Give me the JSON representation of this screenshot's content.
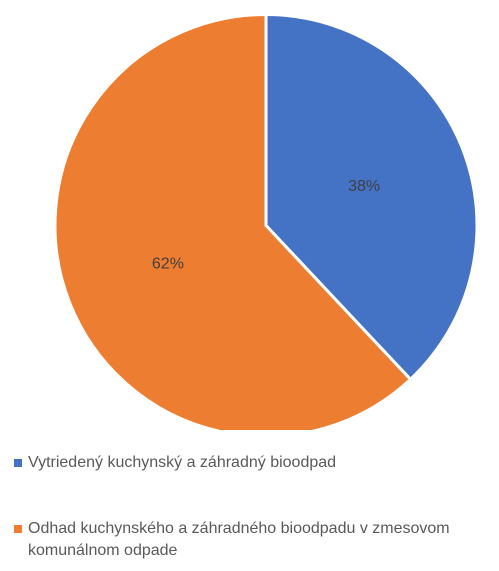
{
  "chart_data": {
    "type": "pie",
    "categories": [
      "Vytriedený kuchynský a záhradný bioodpad",
      "Odhad kuchynského a záhradného bioodpadu v zmesovom komunálnom odpade"
    ],
    "values": [
      38,
      62
    ],
    "value_labels": [
      "38%",
      "62%"
    ],
    "colors": [
      "#4472c4",
      "#ed7d31"
    ],
    "legend": "bottom"
  }
}
